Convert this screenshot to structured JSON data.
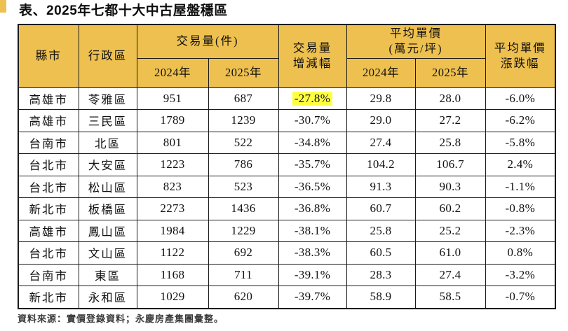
{
  "title": "表、2025年七都十大中古屋盤穩區",
  "footer": "資料來源：實價登錄資料；永慶房產集團彙整。",
  "colors": {
    "header_bg": "#EEC04F",
    "highlight_bg": "#FFFF42",
    "border": "#1B1B1B",
    "background": "#FFFFFF"
  },
  "table": {
    "headers": {
      "county": "縣市",
      "district": "行政區",
      "volume_group": "交易量(件)",
      "volume_change": "交易量\n增減幅",
      "price_group": "平均單價\n(萬元/坪)",
      "price_change": "平均單價\n漲跌幅",
      "year_2024": "2024年",
      "year_2025": "2025年"
    },
    "rows": [
      {
        "county": "高雄市",
        "district": "苓雅區",
        "vol_2024": "951",
        "vol_2025": "687",
        "vol_change": "-27.8%",
        "price_2024": "29.8",
        "price_2025": "28.0",
        "price_change": "-6.0%",
        "highlight": true
      },
      {
        "county": "高雄市",
        "district": "三民區",
        "vol_2024": "1789",
        "vol_2025": "1239",
        "vol_change": "-30.7%",
        "price_2024": "29.0",
        "price_2025": "27.2",
        "price_change": "-6.2%",
        "highlight": false
      },
      {
        "county": "台南市",
        "district": "北區",
        "vol_2024": "801",
        "vol_2025": "522",
        "vol_change": "-34.8%",
        "price_2024": "27.4",
        "price_2025": "25.8",
        "price_change": "-5.8%",
        "highlight": false
      },
      {
        "county": "台北市",
        "district": "大安區",
        "vol_2024": "1223",
        "vol_2025": "786",
        "vol_change": "-35.7%",
        "price_2024": "104.2",
        "price_2025": "106.7",
        "price_change": "2.4%",
        "highlight": false
      },
      {
        "county": "台北市",
        "district": "松山區",
        "vol_2024": "823",
        "vol_2025": "523",
        "vol_change": "-36.5%",
        "price_2024": "91.3",
        "price_2025": "90.3",
        "price_change": "-1.1%",
        "highlight": false
      },
      {
        "county": "新北市",
        "district": "板橋區",
        "vol_2024": "2273",
        "vol_2025": "1436",
        "vol_change": "-36.8%",
        "price_2024": "60.7",
        "price_2025": "60.2",
        "price_change": "-0.8%",
        "highlight": false
      },
      {
        "county": "高雄市",
        "district": "鳳山區",
        "vol_2024": "1984",
        "vol_2025": "1229",
        "vol_change": "-38.1%",
        "price_2024": "25.8",
        "price_2025": "25.2",
        "price_change": "-2.3%",
        "highlight": false
      },
      {
        "county": "台北市",
        "district": "文山區",
        "vol_2024": "1122",
        "vol_2025": "692",
        "vol_change": "-38.3%",
        "price_2024": "60.5",
        "price_2025": "61.0",
        "price_change": "0.8%",
        "highlight": false
      },
      {
        "county": "台南市",
        "district": "東區",
        "vol_2024": "1168",
        "vol_2025": "711",
        "vol_change": "-39.1%",
        "price_2024": "28.3",
        "price_2025": "27.4",
        "price_change": "-3.2%",
        "highlight": false
      },
      {
        "county": "新北市",
        "district": "永和區",
        "vol_2024": "1029",
        "vol_2025": "620",
        "vol_change": "-39.7%",
        "price_2024": "58.9",
        "price_2025": "58.5",
        "price_change": "-0.7%",
        "highlight": false
      }
    ]
  },
  "chart_data": {
    "type": "table",
    "title": "表、2025年七都十大中古屋盤穩區",
    "columns": [
      "縣市",
      "行政區",
      "交易量(件) 2024年",
      "交易量(件) 2025年",
      "交易量增減幅",
      "平均單價(萬元/坪) 2024年",
      "平均單價(萬元/坪) 2025年",
      "平均單價漲跌幅"
    ],
    "rows": [
      [
        "高雄市",
        "苓雅區",
        951,
        687,
        -27.8,
        29.8,
        28.0,
        -6.0
      ],
      [
        "高雄市",
        "三民區",
        1789,
        1239,
        -30.7,
        29.0,
        27.2,
        -6.2
      ],
      [
        "台南市",
        "北區",
        801,
        522,
        -34.8,
        27.4,
        25.8,
        -5.8
      ],
      [
        "台北市",
        "大安區",
        1223,
        786,
        -35.7,
        104.2,
        106.7,
        2.4
      ],
      [
        "台北市",
        "松山區",
        823,
        523,
        -36.5,
        91.3,
        90.3,
        -1.1
      ],
      [
        "新北市",
        "板橋區",
        2273,
        1436,
        -36.8,
        60.7,
        60.2,
        -0.8
      ],
      [
        "高雄市",
        "鳳山區",
        1984,
        1229,
        -38.1,
        25.8,
        25.2,
        -2.3
      ],
      [
        "台北市",
        "文山區",
        1122,
        692,
        -38.3,
        60.5,
        61.0,
        0.8
      ],
      [
        "台南市",
        "東區",
        1168,
        711,
        -39.1,
        28.3,
        27.4,
        -3.2
      ],
      [
        "新北市",
        "永和區",
        1029,
        620,
        -39.7,
        58.9,
        58.5,
        -0.7
      ]
    ],
    "percent_columns": [
      "交易量增減幅",
      "平均單價漲跌幅"
    ],
    "highlighted_cell": {
      "row": 0,
      "column": "交易量增減幅"
    },
    "source_note": "資料來源：實價登錄資料；永慶房產集團彙整。"
  }
}
